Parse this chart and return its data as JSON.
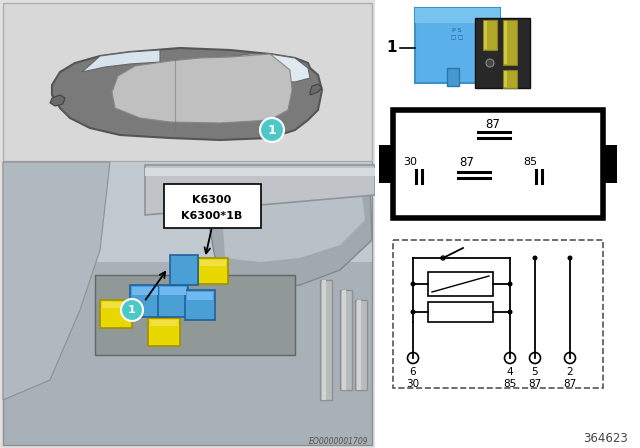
{
  "bg_color": "#ffffff",
  "left_panel_bg": "#e0e0e0",
  "top_panel_bg": "#d4d4d4",
  "engine_panel_bg": "#b8bec8",
  "car_body_color": "#909090",
  "car_roof_color": "#c8c8c8",
  "car_window_color": "#dce8f0",
  "teal_circle": "#4dc8c8",
  "yellow_relay": "#e8d800",
  "blue_relay": "#4a9fd4",
  "relay_photo_blue": "#5ab4f0",
  "relay_photo_dark": "#303030",
  "relay_photo_metal": "#a09030",
  "black": "#000000",
  "white": "#ffffff",
  "gray_mid": "#888888",
  "part_number": "364623",
  "doc_number": "EO0000001709",
  "callout_labels": [
    "K6300",
    "K6300*1B"
  ]
}
